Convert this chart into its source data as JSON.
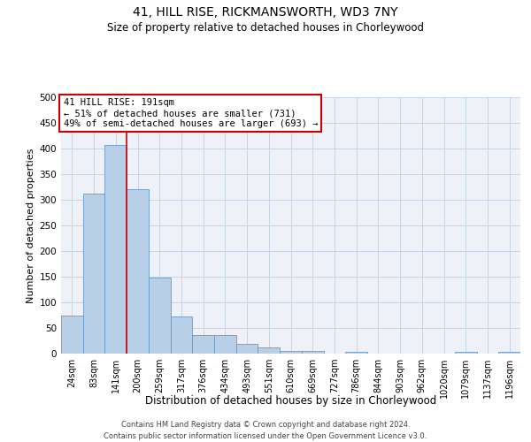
{
  "title1": "41, HILL RISE, RICKMANSWORTH, WD3 7NY",
  "title2": "Size of property relative to detached houses in Chorleywood",
  "xlabel": "Distribution of detached houses by size in Chorleywood",
  "ylabel": "Number of detached properties",
  "bar_labels": [
    "24sqm",
    "83sqm",
    "141sqm",
    "200sqm",
    "259sqm",
    "317sqm",
    "376sqm",
    "434sqm",
    "493sqm",
    "551sqm",
    "610sqm",
    "669sqm",
    "727sqm",
    "786sqm",
    "844sqm",
    "903sqm",
    "962sqm",
    "1020sqm",
    "1079sqm",
    "1137sqm",
    "1196sqm"
  ],
  "bar_values": [
    75,
    312,
    407,
    320,
    148,
    72,
    37,
    37,
    19,
    12,
    5,
    6,
    0,
    4,
    0,
    0,
    0,
    0,
    4,
    0,
    4
  ],
  "bar_color": "#b8cfe8",
  "bar_edge_color": "#6699cc",
  "vline_color": "#cc0000",
  "annotation_lines": [
    "41 HILL RISE: 191sqm",
    "← 51% of detached houses are smaller (731)",
    "49% of semi-detached houses are larger (693) →"
  ],
  "annotation_box_edge_color": "#cc0000",
  "ylim": [
    0,
    500
  ],
  "yticks": [
    0,
    50,
    100,
    150,
    200,
    250,
    300,
    350,
    400,
    450,
    500
  ],
  "grid_color": "#c8d4e4",
  "background_color": "#eef2f8",
  "footer1": "Contains HM Land Registry data © Crown copyright and database right 2024.",
  "footer2": "Contains public sector information licensed under the Open Government Licence v3.0."
}
